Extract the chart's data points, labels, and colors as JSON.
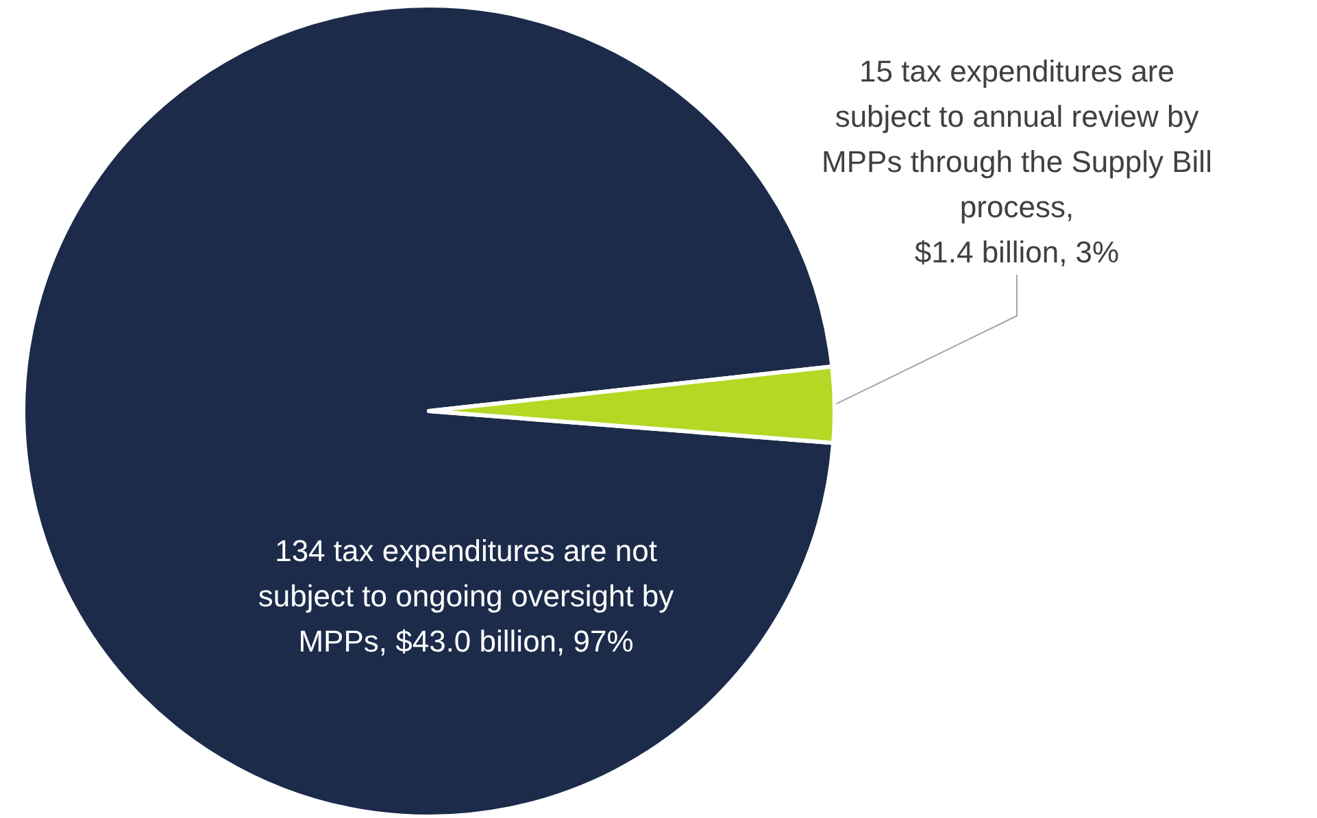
{
  "chart_data": {
    "type": "pie",
    "categories": [
      "134 tax expenditures are not\nsubject to ongoing oversight by\nMPPs, $43.0 billion, 97%",
      "15 tax expenditures are\nsubject to annual review by\nMPPs through the Supply Bill\nprocess,\n$1.4 billion, 3%"
    ],
    "values": [
      97,
      3
    ],
    "colors": [
      "#1c2b4a",
      "#b5d825"
    ]
  }
}
